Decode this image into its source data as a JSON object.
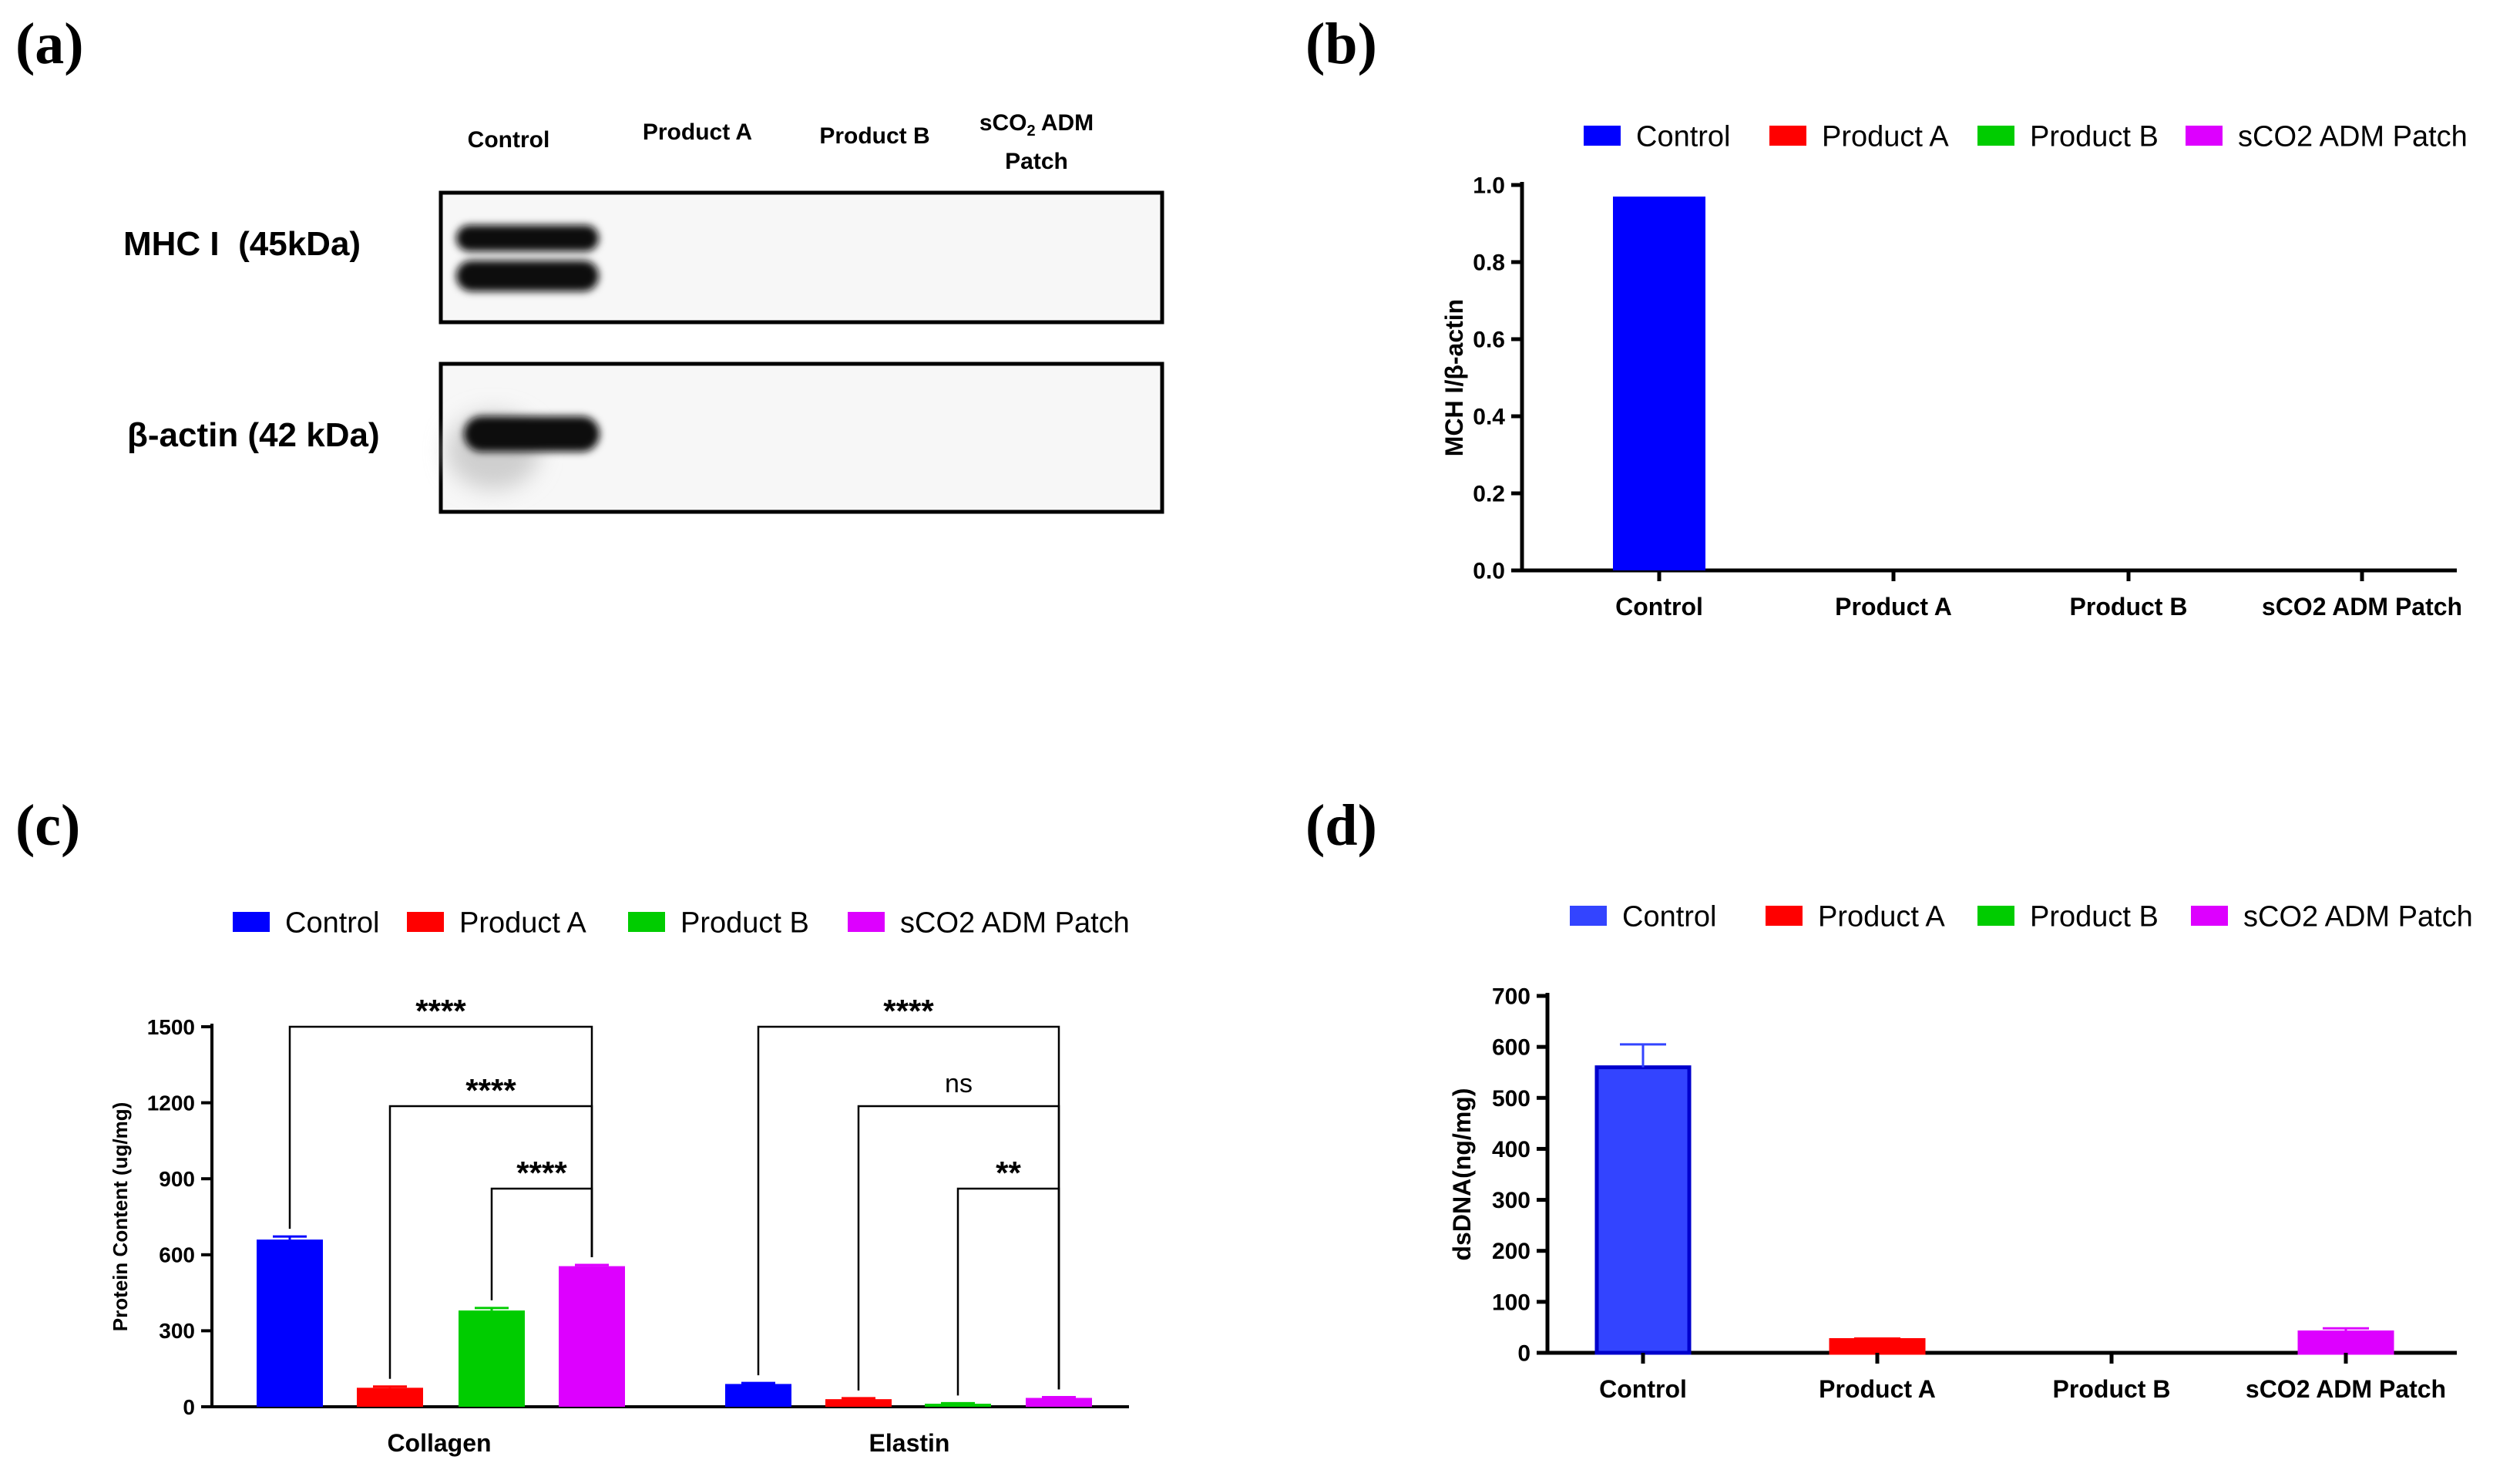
{
  "panels": {
    "a": "(a)",
    "b": "(b)",
    "c": "(c)",
    "d": "(d)"
  },
  "blot": {
    "lanes": [
      "Control",
      "Product A",
      "Product B"
    ],
    "lane4_prefix": "sCO",
    "lane4_sub": "2",
    "lane4_suffix": " ADM",
    "lane4_line2": "Patch",
    "rows": [
      "MHC I  (45kDa)",
      "β-actin (42 kDa)"
    ]
  },
  "chart_data": [
    {
      "id": "b",
      "type": "bar",
      "categories": [
        "Control",
        "Product A",
        "Product B",
        "sCO2 ADM Patch"
      ],
      "values": [
        0.97,
        0,
        0,
        0
      ],
      "legend": [
        "Control",
        "Product A",
        "Product B",
        "sCO2 ADM Patch"
      ],
      "colors": [
        "#0000ff",
        "#ff0000",
        "#00cc00",
        "#dd00ff"
      ],
      "ylabel": "MCH I/β-actin",
      "xlabel": "",
      "ylim": [
        0,
        1.0
      ],
      "yticks": [
        "0.0",
        "0.2",
        "0.4",
        "0.6",
        "0.8",
        "1.0"
      ]
    },
    {
      "id": "c",
      "type": "bar",
      "groups": [
        "Collagen",
        "Elastin"
      ],
      "series": [
        {
          "name": "Control",
          "values": [
            660,
            90
          ],
          "errors": [
            12,
            4
          ]
        },
        {
          "name": "Product A",
          "values": [
            75,
            30
          ],
          "errors": [
            5,
            4
          ]
        },
        {
          "name": "Product B",
          "values": [
            380,
            12
          ],
          "errors": [
            10,
            2
          ]
        },
        {
          "name": "sCO2 ADM Patch",
          "values": [
            555,
            35
          ],
          "errors": [
            5,
            3
          ]
        }
      ],
      "colors": [
        "#0000ff",
        "#ff0000",
        "#00cc00",
        "#dd00ff"
      ],
      "ylabel": "Protein Content (ug/mg)",
      "xlabel": "",
      "ylim": [
        0,
        1500
      ],
      "yticks": [
        "0",
        "300",
        "600",
        "900",
        "1200",
        "1500"
      ],
      "significance": [
        {
          "text": "****",
          "group": 0,
          "from": 0,
          "to": 3,
          "level": 3
        },
        {
          "text": "****",
          "group": 0,
          "from": 1,
          "to": 3,
          "level": 2
        },
        {
          "text": "****",
          "group": 0,
          "from": 2,
          "to": 3,
          "level": 1
        },
        {
          "text": "****",
          "group": 1,
          "from": 0,
          "to": 3,
          "level": 3
        },
        {
          "text": "ns",
          "group": 1,
          "from": 1,
          "to": 3,
          "level": 2
        },
        {
          "text": "**",
          "group": 1,
          "from": 2,
          "to": 3,
          "level": 1
        }
      ]
    },
    {
      "id": "d",
      "type": "bar",
      "categories": [
        "Control",
        "Product A",
        "Product B",
        "sCO2 ADM Patch"
      ],
      "values": [
        560,
        25,
        0,
        40
      ],
      "errors": [
        45,
        3,
        0,
        8
      ],
      "colors": [
        "#3344ff",
        "#ff0000",
        "#00cc00",
        "#dd00ff"
      ],
      "legend": [
        "Control",
        "Product A",
        "Product B",
        "sCO2 ADM Patch"
      ],
      "ylabel": "dsDNA(ng/mg)",
      "xlabel": "",
      "ylim": [
        0,
        700
      ],
      "yticks": [
        "0",
        "100",
        "200",
        "300",
        "400",
        "500",
        "600",
        "700"
      ]
    }
  ]
}
